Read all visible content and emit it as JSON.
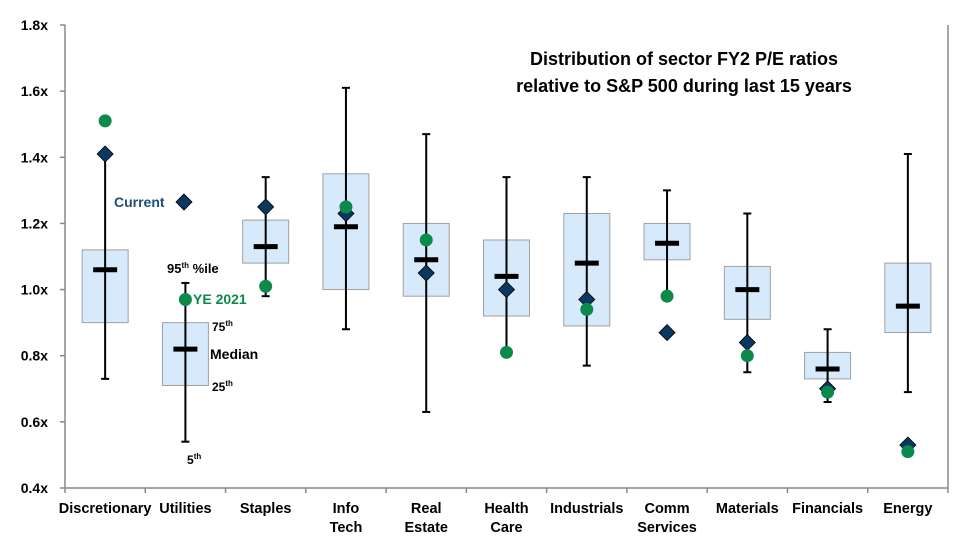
{
  "chart_data": {
    "type": "box",
    "title": [
      "Distribution of sector FY2 P/E ratios",
      "relative to S&P 500 during last 15 years"
    ],
    "ylim": [
      0.4,
      1.8
    ],
    "yticks": [
      0.4,
      0.6,
      0.8,
      1.0,
      1.2,
      1.4,
      1.6,
      1.8
    ],
    "ytick_labels": [
      "0.4x",
      "0.6x",
      "0.8x",
      "1.0x",
      "1.2x",
      "1.4x",
      "1.6x",
      "1.8x"
    ],
    "grid": false,
    "categories": [
      [
        "Discretionary"
      ],
      [
        "Utilities"
      ],
      [
        "Staples"
      ],
      [
        "Info",
        "Tech"
      ],
      [
        "Real",
        "Estate"
      ],
      [
        "Health",
        "Care"
      ],
      [
        "Industrials"
      ],
      [
        "Comm",
        "Services"
      ],
      [
        "Materials"
      ],
      [
        "Financials"
      ],
      [
        "Energy"
      ]
    ],
    "p5": [
      0.73,
      0.54,
      0.98,
      0.88,
      0.63,
      0.81,
      0.77,
      0.98,
      0.75,
      0.66,
      0.69
    ],
    "p25": [
      0.9,
      0.71,
      1.08,
      1.0,
      0.98,
      0.92,
      0.89,
      1.09,
      0.91,
      0.73,
      0.87
    ],
    "median": [
      1.06,
      0.82,
      1.13,
      1.19,
      1.09,
      1.04,
      1.08,
      1.14,
      1.0,
      0.76,
      0.95
    ],
    "p75": [
      1.12,
      0.9,
      1.21,
      1.35,
      1.2,
      1.15,
      1.23,
      1.2,
      1.07,
      0.81,
      1.08
    ],
    "p95": [
      1.41,
      1.02,
      1.34,
      1.61,
      1.47,
      1.34,
      1.34,
      1.3,
      1.23,
      0.88,
      1.41
    ],
    "series": [
      {
        "name": "Current",
        "marker": "diamond",
        "color": "#0b3861",
        "values": [
          1.41,
          null,
          1.25,
          1.23,
          1.05,
          1.0,
          0.97,
          0.87,
          0.84,
          0.7,
          0.53
        ]
      },
      {
        "name": "YE 2021",
        "marker": "circle",
        "color": "#0b8a4b",
        "values": [
          1.51,
          0.97,
          1.01,
          1.25,
          1.15,
          0.81,
          0.94,
          0.98,
          0.8,
          0.69,
          0.51
        ]
      }
    ],
    "annotations": {
      "p95": [
        "95",
        "th",
        " %ile"
      ],
      "p75": [
        "75",
        "th"
      ],
      "median": "Median",
      "p25": [
        "25",
        "th"
      ],
      "p5": [
        "5",
        "th"
      ]
    },
    "colors": {
      "box_fill": "#d6eafc",
      "box_stroke": "#a0a0a0",
      "whisker": "#000000"
    }
  }
}
